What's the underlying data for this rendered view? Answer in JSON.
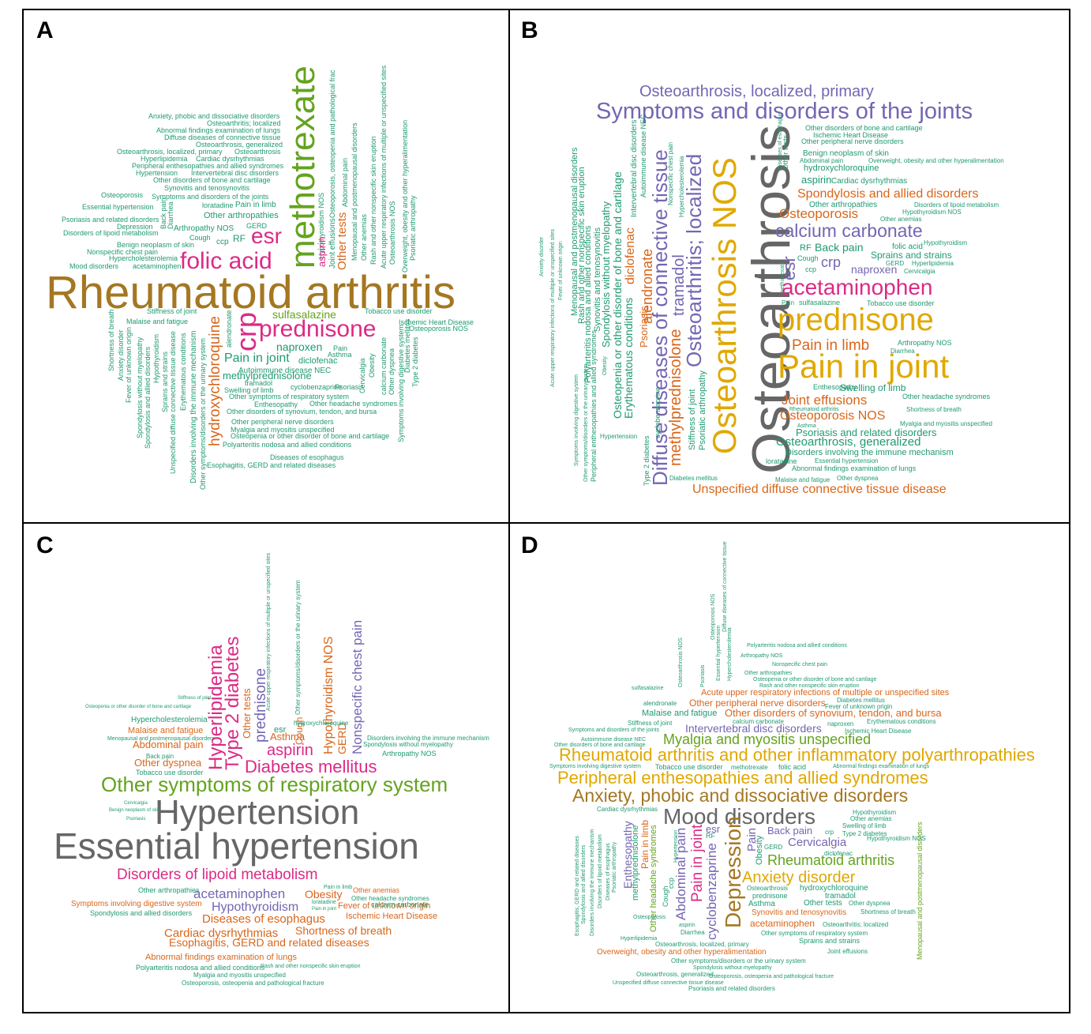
{
  "panels": [
    {
      "label": "A",
      "words": [
        "Anxiety, phobic and dissociative disorders",
        "Osteoarthritis; localized",
        "Abnormal findings examination of lungs",
        "Diffuse diseases of connective tissue",
        "Osteoarthrosis, generalized",
        "Osteoarthrosis, localized, primary",
        "Osteoarthrosis",
        "Hyperlipidemia",
        "Cardiac dysrhythmias",
        "Peripheral enthesopathies and allied syndromes",
        "Hypertension",
        "Intervertebral disc disorders",
        "Other disorders of bone and cartilage",
        "Synovitis and tenosynovitis",
        "Osteoporosis",
        "Symptoms and disorders of the joints",
        "Essential hypertension",
        "Pain in limb",
        "Other arthropathies",
        "Psoriasis and related disorders",
        "Depression",
        "GERD",
        "Disorders of lipoid metabolism",
        "Arthropathy NOS",
        "Cough",
        "RF",
        "ccp",
        "Benign neoplasm of skin",
        "Nonspecific chest pain",
        "Hypercholesterolemia",
        "Mood disorders",
        "acetaminophen",
        "esr",
        "folic acid",
        "Rheumatoid arthritis",
        "methotrexate",
        "Back pain",
        "Diarrhea",
        "Hypothyroidism NOS",
        "aspirin",
        "Joint effusions",
        "Other tests",
        "Osteoporosis, osteopenia and pathological frac",
        "Abdominal pain",
        "Menopausal and postmenopausal disorders",
        "Other anemias",
        "Rash and other nonspecific skin eruption",
        "Acute upper respiratory infections of multiple or unspecified sites",
        "Osteoarthrosis NOS",
        "Overweight, obesity and other hyperalimentation",
        "Psoriatic arthropathy",
        "Stiffness of joint",
        "Tobacco use disorder",
        "sulfasalazine",
        "Malaise and fatigue",
        "Ischemic Heart Disease",
        "Osteoporosis NOS",
        "prednisone",
        "crp",
        "hydroxychloroquine",
        "alendronate",
        "naproxen",
        "Pain",
        "Asthma",
        "Pain in joint",
        "diclofenac",
        "Autoimmune disease NEC",
        "methylprednisolone",
        "tramadol",
        "cyclobenzaprine",
        "Psoriasis",
        "Swelling of limb",
        "Other symptoms of respiratory system",
        "Enthesopathy",
        "Other headache syndromes",
        "Other disorders of synovium, tendon, and bursa",
        "Other peripheral nerve disorders",
        "Myalgia and myositis unspecified",
        "Osteopenia or other disorder of bone and cartilage",
        "Polyarteritis nodosa and allied conditions",
        "Diseases of esophagus",
        "Esophagitis, GERD and related diseases",
        "Shortness of breath",
        "Anxiety disorder",
        "Fever of unknown origin",
        "Spondylosis without myelopathy",
        "Spondylosis and allied disorders",
        "Hypothyroidism",
        "Sprains and strains",
        "Unspecified diffuse connective tissue disease",
        "Erythematous conditions",
        "Disorders involving the immune mechanism",
        "Other symptoms/disorders or the urinary system",
        "Cervicalgia",
        "Obesity",
        "calcium carbonate",
        "Other dyspnea",
        "Symptoms involving digestive system",
        "Diabetes mellitus",
        "Type 2 diabetes",
        "loratadine"
      ]
    },
    {
      "label": "B",
      "words": [
        "Osteoarthrosis, localized, primary",
        "Symptoms and disorders of the joints",
        "Osteoarthrosis",
        "Osteoarthrosis NOS",
        "Osteoarthritis; localized",
        "methylprednisolone",
        "tramadol",
        "Diffuse diseases of connective tissue",
        "alendronate",
        "diclofenac",
        "Psoriasis",
        "Erythematous conditions",
        "Osteopenia or other disorder of bone and cartilage",
        "Spondylosis without myelopathy",
        "Synovitis and tenosynovitis",
        "Polyarteritis nodosa and allied conditions",
        "Rash and other nonspecific skin eruption",
        "Menopausal and postmenopausal disorders",
        "Intervertebral disc disorders",
        "Autoimmune disease NEC",
        "Nonspecific chest pain",
        "Hypercholesterolemia",
        "Stiffness of joint",
        "Psoriatic arthropathy",
        "Type 2 diabetes",
        "cyclobenzaprine",
        "Anxiety disorder",
        "Acute upper respiratory infections of multiple or unspecified sites",
        "Fever of unknown origin",
        "Symptoms involving digestive system",
        "Other symptoms/disorders or the urinary system",
        "Peripheral enthesopathies and allied syndromes",
        "Obesity",
        "Hypertension",
        "Diabetes mellitus",
        "Other disorders of bone and cartilage",
        "Ischemic Heart Disease",
        "Other peripheral nerve disorders",
        "Benign neoplasm of skin",
        "Abdominal pain",
        "Overweight, obesity and other hyperalimentation",
        "hydroxychloroquine",
        "aspirin",
        "Cardiac dysrhythmias",
        "Spondylosis and allied disorders",
        "Other arthropathies",
        "Disorders of lipoid metabolism",
        "Osteoporosis",
        "Hypothyroidism NOS",
        "Other anemias",
        "calcium carbonate",
        "Hypothyroidism",
        "RF",
        "Back pain",
        "folic acid",
        "Sprains and strains",
        "Cough",
        "GERD",
        "Hyperlipidemia",
        "crp",
        "ccp",
        "naproxen",
        "Cervicalgia",
        "esr",
        "methotrexate",
        "Diseases of esophagus",
        "Other tests",
        "acetaminophen",
        "Pain",
        "sulfasalazine",
        "Tobacco use disorder",
        "prednisone",
        "Pain in limb",
        "Arthropathy NOS",
        "Diarrhea",
        "Pain in joint",
        "Enthesopathy",
        "Swelling of limb",
        "Other headache syndromes",
        "Joint effusions",
        "Rheumatoid arthritis",
        "Shortness of breath",
        "Osteoporosis NOS",
        "Asthma",
        "Myalgia and myositis unspecified",
        "Psoriasis and related disorders",
        "Osteoarthrosis, generalized",
        "Disorders involving the immune mechanism",
        "loratadine",
        "Essential hypertension",
        "Abnormal findings examination of lungs",
        "Malaise and fatigue",
        "Other dyspnea",
        "Unspecified diffuse connective tissue disease"
      ]
    },
    {
      "label": "C",
      "words": [
        "Essential hypertension",
        "Hypertension",
        "Other symptoms of respiratory system",
        "Diabetes mellitus",
        "aspirin",
        "Asthma",
        "Hyperlipidemia",
        "Type 2 diabetes",
        "prednisone",
        "Other tests",
        "esr",
        "Hypothyroidism NOS",
        "GERD",
        "Nonspecific chest pain",
        "Cough",
        "Disorders involving the immune mechanism",
        "Spondylosis without myelopathy",
        "Other symptoms/disorders or the urinary system",
        "hydroxychloroquine",
        "Arthropathy NOS",
        "Hypercholesterolemia",
        "Malaise and fatigue",
        "Menopausal and postmenopausal disorders",
        "Abdominal pain",
        "Back pain",
        "Other dyspnea",
        "Tobacco use disorder",
        "Osteopenia or other disorder of bone and cartilage",
        "Cervicalgia",
        "Benign neoplasm of skin",
        "Psoriasis",
        "Disorders of lipoid metabolism",
        "Other arthropathies",
        "acetaminophen",
        "Obesity",
        "Other anemias",
        "Symptoms involving digestive system",
        "Hypothyroidism",
        "Other headache syndromes",
        "Fever of unknown origin",
        "calcium carbonate",
        "Spondylosis and allied disorders",
        "Diseases of esophagus",
        "Ischemic Heart Disease",
        "Cardiac dysrhythmias",
        "Shortness of breath",
        "Esophagitis, GERD and related diseases",
        "Abnormal findings examination of lungs",
        "Polyarteritis nodosa and allied conditions",
        "Rash and other nonspecific skin eruption",
        "Myalgia and myositis unspecified",
        "Osteoporosis, osteopenia and pathological fracture",
        "Pain in limb",
        "loratadine",
        "Pain in joint",
        "Acute upper respiratory infections of multiple or unspecified sites",
        "Stiffness of joint"
      ]
    },
    {
      "label": "D",
      "words": [
        "Rheumatoid arthritis and other inflammatory polyarthropathies",
        "Peripheral enthesopathies and allied syndromes",
        "Anxiety, phobic and dissociative disorders",
        "Mood disorders",
        "Myalgia and myositis unspecified",
        "Intervertebral disc disorders",
        "Other disorders of synovium, tendon, and bursa",
        "Other peripheral nerve disorders",
        "Acute upper respiratory infections of multiple or unspecified sites",
        "Malaise and fatigue",
        "Diabetes mellitus",
        "Fever of unknown origin",
        "Erythematous conditions",
        "naproxen",
        "Ischemic Heart Disease",
        "alendronate",
        "sulfasalazine",
        "Stiffness of joint",
        "Symptoms and disorders of the joints",
        "calcium carbonate",
        "Autoimmune disease NEC",
        "Other disorders of bone and cartilage",
        "Symptoms involving digestive system",
        "Tobacco use disorder",
        "methotrexate",
        "folic acid",
        "Abnormal findings examination of lungs",
        "Polyarteritis nodosa and allied conditions",
        "Arthropathy NOS",
        "Nonspecific chest pain",
        "Other arthropathies",
        "Osteopenia or other disorder of bone and cartilage",
        "Rash and other nonspecific skin eruption",
        "Osteoarthrosis NOS",
        "Psoriasis",
        "Osteoporosis NOS",
        "Essential hypertension",
        "Hypercholesterolemia",
        "Diffuse diseases of connective tissue",
        "Cardiac dysrhythmias",
        "esr",
        "RF",
        "Back pain",
        "crp",
        "Hypothyroidism",
        "Other anemias",
        "Swelling of limb",
        "Type 2 diabetes",
        "Hypothyroidism NOS",
        "Cervicalgia",
        "Rheumatoid arthritis",
        "Anxiety disorder",
        "GERD",
        "diclofenac",
        "Pain",
        "Obesity",
        "Depression",
        "cyclobenzaprine",
        "Pain in joint",
        "Abdominal pain",
        "Other headache syndromes",
        "Pain in limb",
        "Enthesopathy",
        "methylprednisolone",
        "Cough",
        "ccp",
        "Osteoarthrosis",
        "hydroxychloroquine",
        "prednisone",
        "tramadol",
        "Asthma",
        "Other tests",
        "Other dyspnea",
        "Synovitis and tenosynovitis",
        "Shortness of breath",
        "acetaminophen",
        "Osteoarthritis; localized",
        "Other symptoms of respiratory system",
        "Sprains and strains",
        "Joint effusions",
        "Osteoarthrosis, localized, primary",
        "Overweight, obesity and other hyperalimentation",
        "Other symptoms/disorders or the urinary system",
        "Spondylosis without myelopathy",
        "Osteoarthrosis, generalized",
        "Osteoporosis, osteopenia and pathological fracture",
        "Unspecified diffuse connective tissue disease",
        "Psoriasis and related disorders",
        "Hyperlipidemia",
        "Osteoporosis",
        "aspirin",
        "Diarrhea",
        "Menopausal and postmenopausal disorders",
        "Esophagitis, GERD and related diseases",
        "Spondylosis and allied disorders",
        "Disorders involving the immune mechanism",
        "Disorders of lipoid metabolism",
        "Diseases of esophagus",
        "Psoriatic arthropathy",
        "Hypertension"
      ]
    }
  ]
}
